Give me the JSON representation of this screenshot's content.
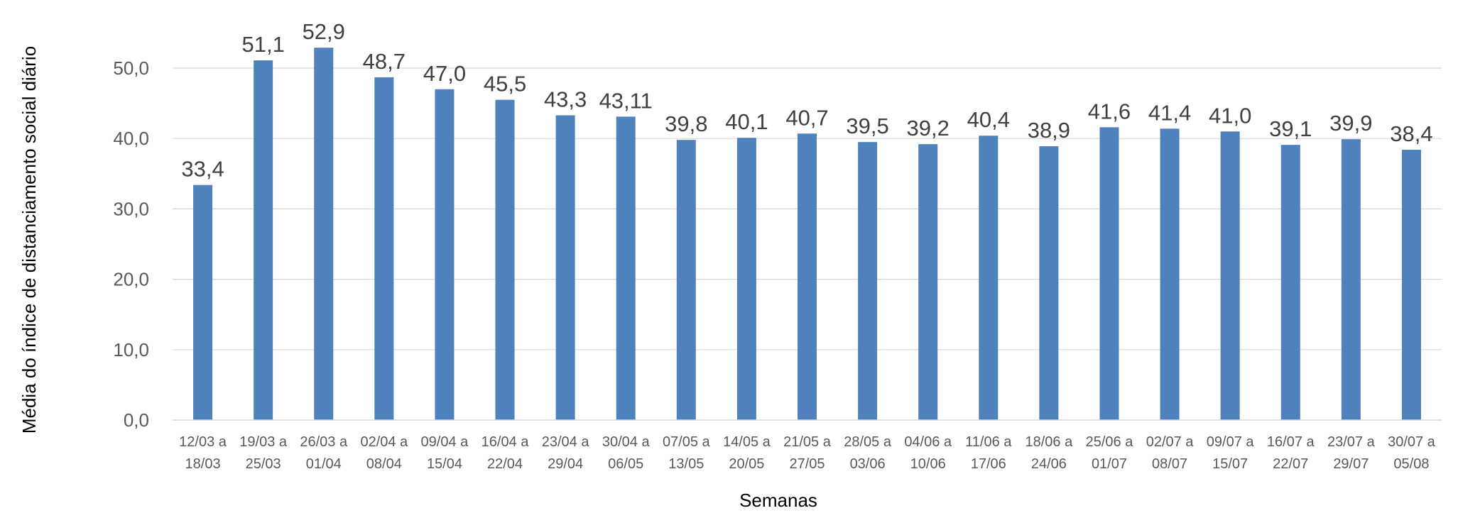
{
  "chart_data": {
    "type": "bar",
    "title": "",
    "xlabel": "Semanas",
    "ylabel": "Média do índice de distanciamento social diário",
    "ylim": [
      0,
      55
    ],
    "yticks": [
      "0,0",
      "10,0",
      "20,0",
      "30,0",
      "40,0",
      "50,0"
    ],
    "ytick_values": [
      0,
      10,
      20,
      30,
      40,
      50
    ],
    "grid": true,
    "legend": "none",
    "bar_color": "#4F81BD",
    "categories": [
      [
        "12/03 a",
        "18/03"
      ],
      [
        "19/03 a",
        "25/03"
      ],
      [
        "26/03 a",
        "01/04"
      ],
      [
        "02/04 a",
        "08/04"
      ],
      [
        "09/04 a",
        "15/04"
      ],
      [
        "16/04 a",
        "22/04"
      ],
      [
        "23/04 a",
        "29/04"
      ],
      [
        "30/04 a",
        "06/05"
      ],
      [
        "07/05 a",
        "13/05"
      ],
      [
        "14/05 a",
        "20/05"
      ],
      [
        "21/05 a",
        "27/05"
      ],
      [
        "28/05 a",
        "03/06"
      ],
      [
        "04/06 a",
        "10/06"
      ],
      [
        "11/06 a",
        "17/06"
      ],
      [
        "18/06 a",
        "24/06"
      ],
      [
        "25/06 a",
        "01/07"
      ],
      [
        "02/07 a",
        "08/07"
      ],
      [
        "09/07 a",
        "15/07"
      ],
      [
        "16/07 a",
        "22/07"
      ],
      [
        "23/07 a",
        "29/07"
      ],
      [
        "30/07 a",
        "05/08"
      ]
    ],
    "values": [
      33.4,
      51.1,
      52.9,
      48.7,
      47.0,
      45.5,
      43.3,
      43.11,
      39.8,
      40.1,
      40.7,
      39.5,
      39.2,
      40.4,
      38.9,
      41.6,
      41.4,
      41.0,
      39.1,
      39.9,
      38.4
    ],
    "data_labels": [
      "33,4",
      "51,1",
      "52,9",
      "48,7",
      "47,0",
      "45,5",
      "43,3",
      "43,11",
      "39,8",
      "40,1",
      "40,7",
      "39,5",
      "39,2",
      "40,4",
      "38,9",
      "41,6",
      "41,4",
      "41,0",
      "39,1",
      "39,9",
      "38,4"
    ]
  }
}
